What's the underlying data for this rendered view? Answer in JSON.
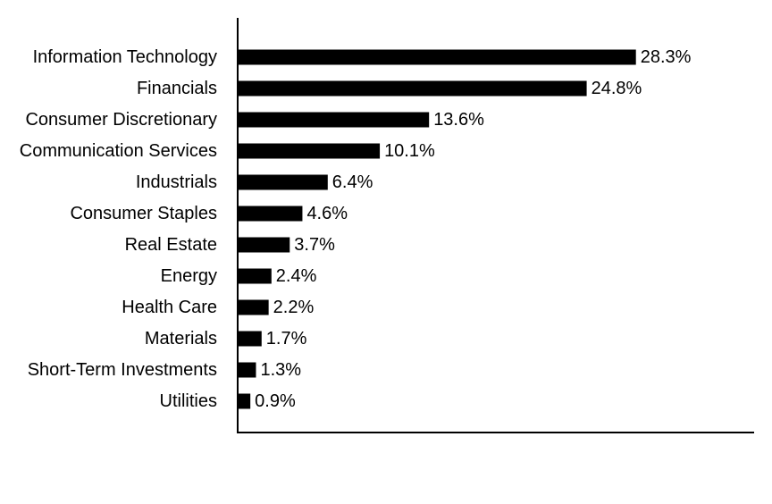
{
  "chart_data": {
    "type": "bar",
    "orientation": "horizontal",
    "categories": [
      "Information Technology",
      "Financials",
      "Consumer Discretionary",
      "Communication Services",
      "Industrials",
      "Consumer Staples",
      "Real Estate",
      "Energy",
      "Health Care",
      "Materials",
      "Short-Term Investments",
      "Utilities"
    ],
    "values": [
      28.3,
      24.8,
      13.6,
      10.1,
      6.4,
      4.6,
      3.7,
      2.4,
      2.2,
      1.7,
      1.3,
      0.9
    ],
    "value_labels": [
      "28.3%",
      "24.8%",
      "13.6%",
      "10.1%",
      "6.4%",
      "4.6%",
      "3.7%",
      "2.4%",
      "2.2%",
      "1.7%",
      "1.3%",
      "0.9%"
    ],
    "unit": "%",
    "xlim": [
      0,
      36.7
    ],
    "bar_color": "#000000",
    "grid": false,
    "legend": "none"
  }
}
